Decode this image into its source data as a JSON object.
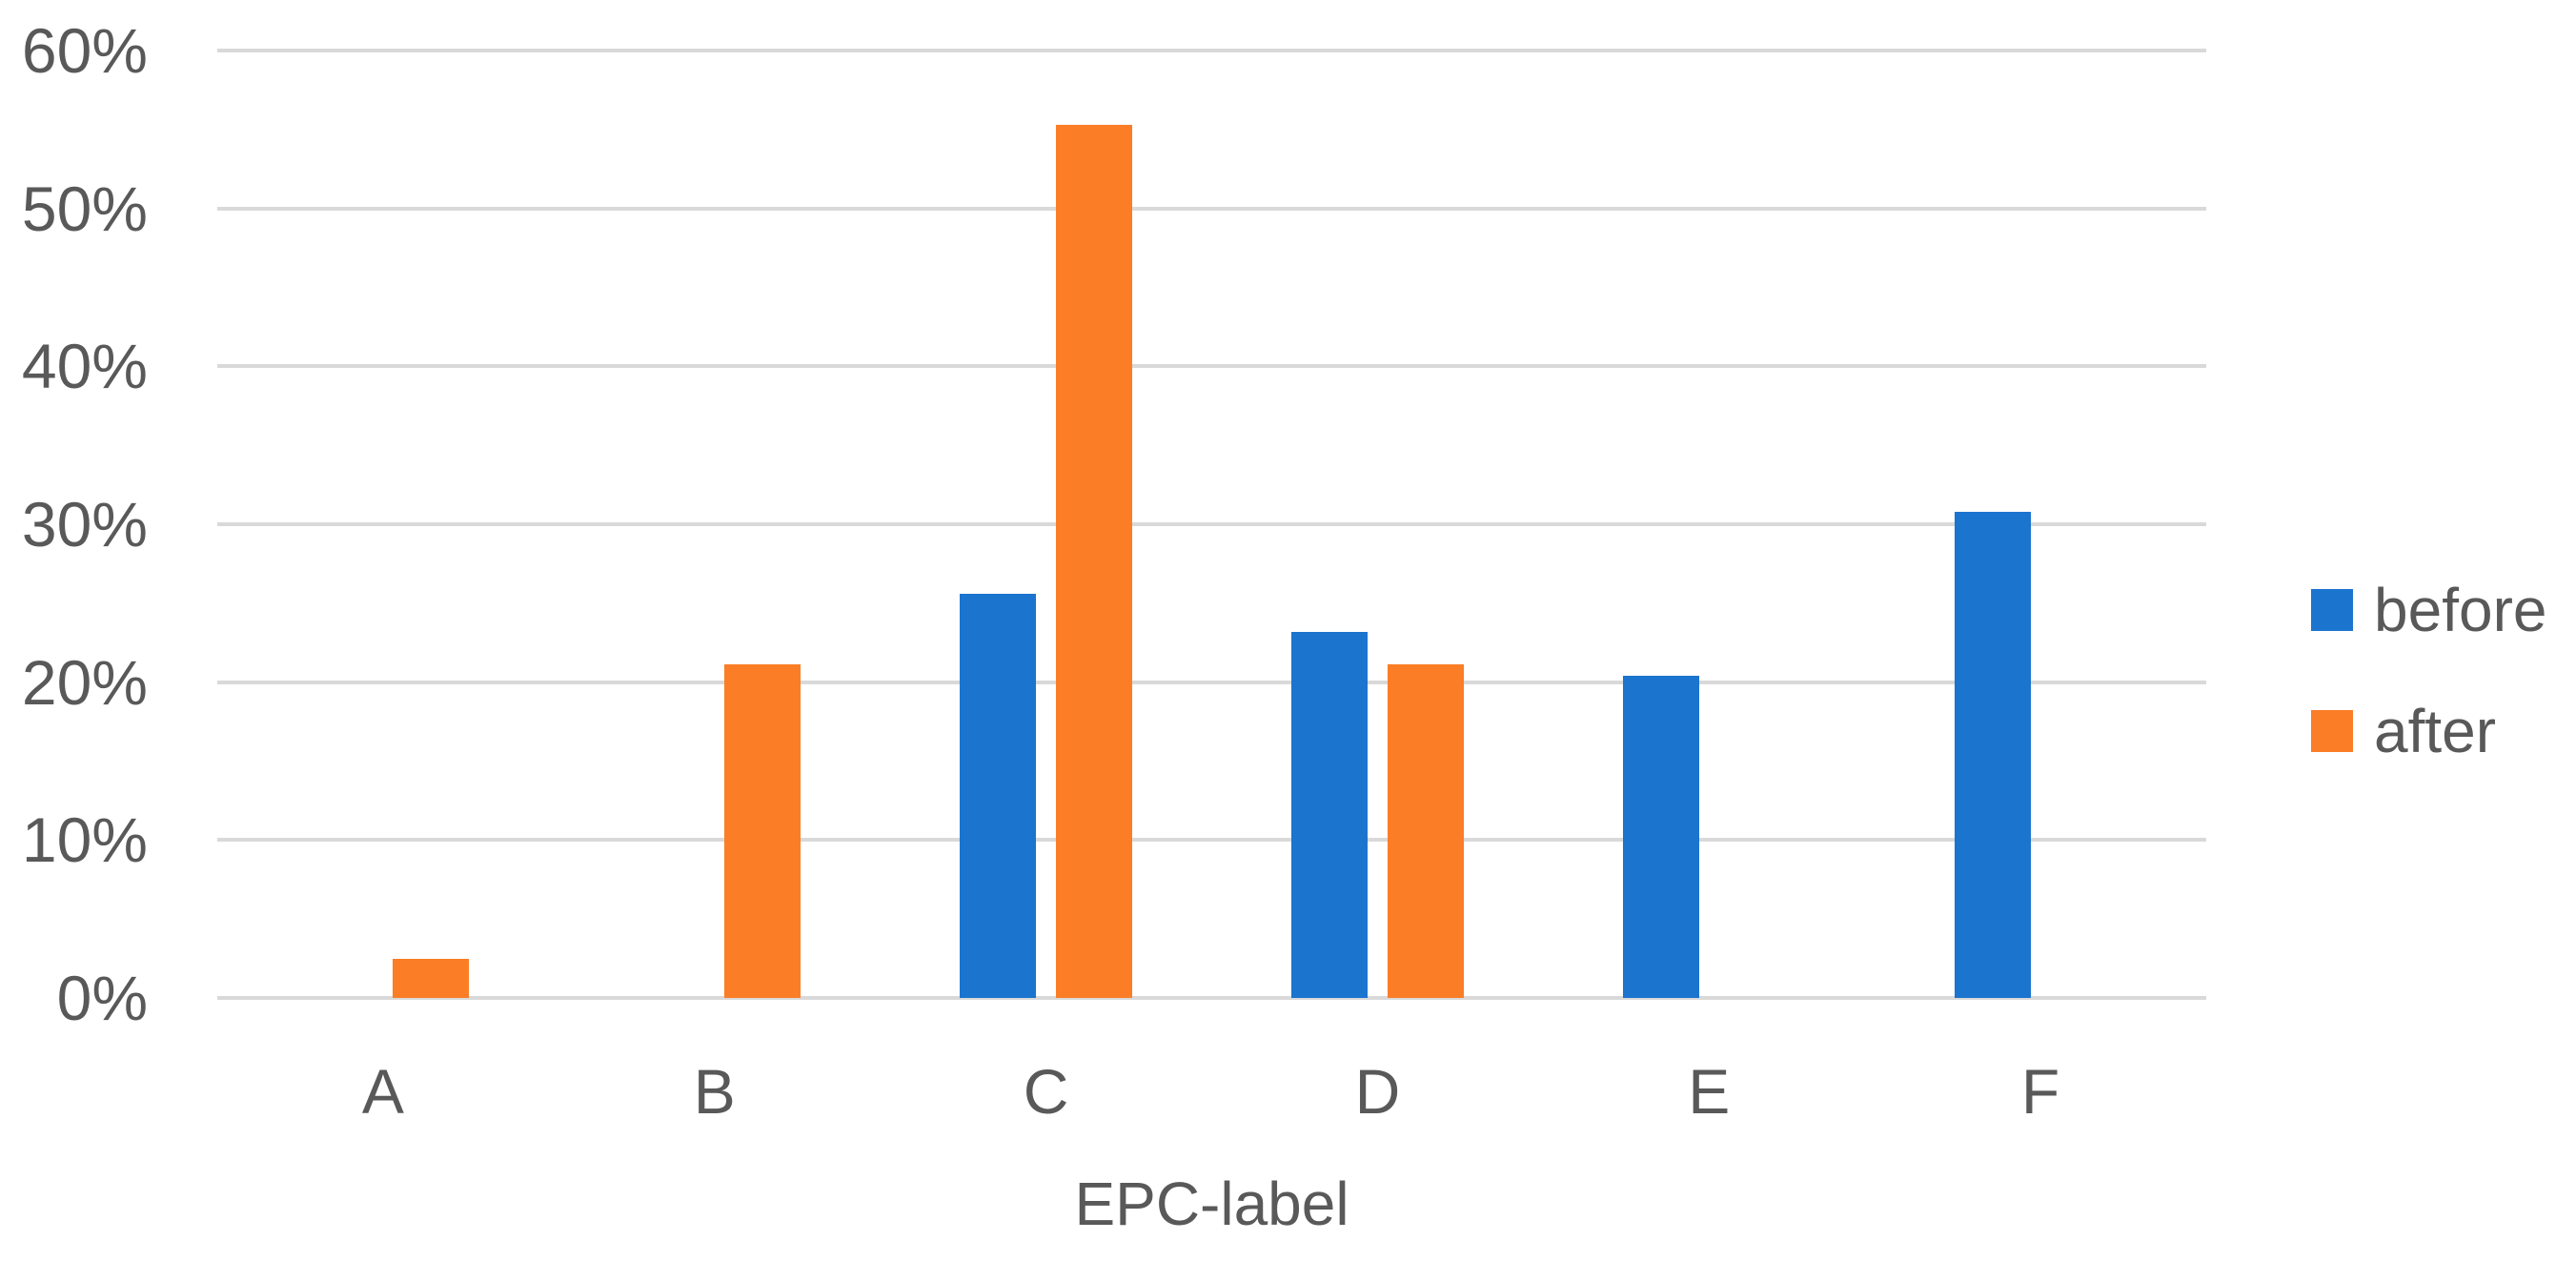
{
  "chart_data": {
    "type": "bar",
    "title": "",
    "categories": [
      "A",
      "B",
      "C",
      "D",
      "E",
      "F"
    ],
    "series": [
      {
        "name": "before",
        "color": "#1b74ce",
        "values": [
          0,
          0,
          25.6,
          23.2,
          20.4,
          30.8
        ]
      },
      {
        "name": "after",
        "color": "#fb7d26",
        "values": [
          2.5,
          21.1,
          55.3,
          21.1,
          0,
          0
        ]
      }
    ],
    "xlabel": "EPC-label",
    "ylabel": "",
    "ylim": [
      0,
      60
    ],
    "yticks": [
      "0%",
      "10%",
      "20%",
      "30%",
      "40%",
      "50%",
      "60%"
    ],
    "ytick_values": [
      0,
      10,
      20,
      30,
      40,
      50,
      60
    ],
    "grid": true,
    "legend_position": "right",
    "unit": "percent"
  },
  "colors": {
    "grid": "#d9d9d9",
    "text": "#595959",
    "background": "#ffffff",
    "series_before": "#1b74ce",
    "series_after": "#fb7d26"
  }
}
